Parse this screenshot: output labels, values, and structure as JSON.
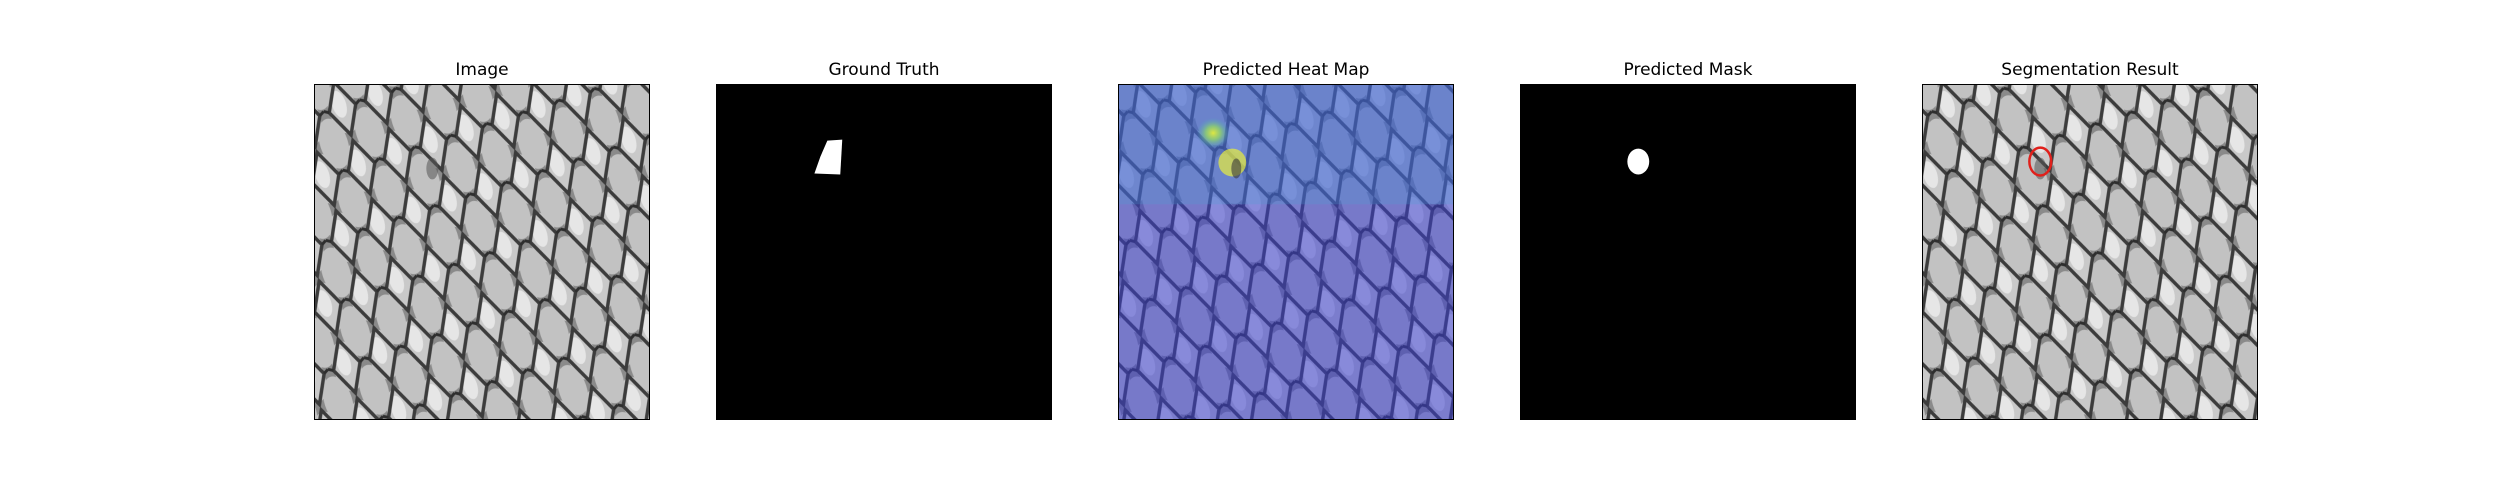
{
  "figure": {
    "panels": [
      {
        "id": "image",
        "title": "Image"
      },
      {
        "id": "ground-truth",
        "title": "Ground Truth"
      },
      {
        "id": "heatmap",
        "title": "Predicted Heat Map"
      },
      {
        "id": "pred-mask",
        "title": "Predicted Mask"
      },
      {
        "id": "segmentation",
        "title": "Segmentation Result"
      }
    ]
  },
  "colors": {
    "background": "#ffffff",
    "mask_background": "#000000",
    "mask_foreground": "#ffffff",
    "contour": "#e0201b",
    "heat_low": "#3b3fcf",
    "heat_high": "#d7e63c"
  }
}
